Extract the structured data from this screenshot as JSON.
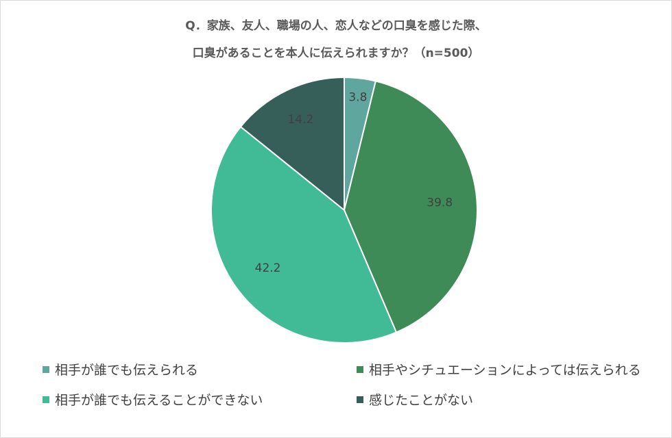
{
  "chart_data": {
    "type": "pie",
    "title_lines": [
      "Q．家族、友人、職場の人、恋人などの口臭を感じた際、",
      "口臭があることを本人に伝えられますか？（n=500）"
    ],
    "categories": [
      "相手が誰でも伝えられる",
      "相手やシチュエーションによっては伝えられる",
      "相手が誰でも伝えることができない",
      "感じたことがない"
    ],
    "values": [
      3.8,
      39.8,
      42.2,
      14.2
    ],
    "colors": [
      "#5fa79e",
      "#3f8b57",
      "#41ba96",
      "#365f5a"
    ],
    "legend_position": "bottom"
  }
}
